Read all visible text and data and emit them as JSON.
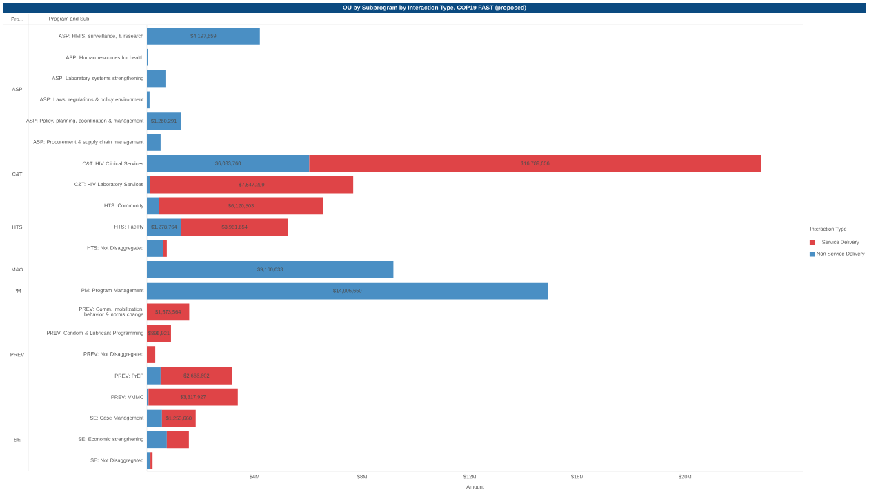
{
  "chart_data": {
    "type": "bar",
    "orientation": "horizontal",
    "stacked": true,
    "title": "OU by Subprogram by Interaction Type, COP19 FAST (proposed)",
    "xlabel": "Amount",
    "legend_title": "Interaction Type",
    "legend": "right",
    "categories": [
      "ASP: HMIS, surveillance, & research",
      "ASP: Human resources for health",
      "ASP: Laboratory systems strengthening",
      "ASP: Laws, regulations & policy environment",
      "ASP: Policy, planning, coordination & management",
      "ASP: Procurement & supply chain management",
      "C&T: HIV Clinical Services",
      "C&T: HIV Laboratory Services",
      "HTS: Community",
      "HTS: Facility",
      "HTS: Not Disaggregated",
      null,
      "PM: Program Management",
      "PREV: Comm. mobilization, behavior & norms change",
      "PREV: Condom & Lubricant Programming",
      "PREV: Not Disaggregated",
      "PREV: PrEP",
      "PREV: VMMC",
      "SE: Case Management",
      "SE: Economic strengthening",
      "SE: Not Disaggregated"
    ],
    "series": [
      {
        "name": "Non Service Delivery",
        "color": "#4a8fc4",
        "values": [
          4197659,
          50000,
          690000,
          100000,
          1260291,
          510000,
          6033760,
          120000,
          440000,
          1278764,
          590000,
          9160633,
          14905650,
          null,
          null,
          null,
          510000,
          60000,
          560000,
          740000,
          130000
        ],
        "value_labels": [
          "$4,197,659",
          null,
          null,
          null,
          "$1,260,291",
          null,
          "$6,033,760",
          null,
          null,
          "$1,278,764",
          null,
          "$9,160,633",
          "$14,905,650",
          null,
          null,
          null,
          null,
          null,
          null,
          null,
          null
        ]
      },
      {
        "name": "Service Delivery",
        "color": "#df4447",
        "values": [
          null,
          null,
          null,
          null,
          null,
          null,
          16789656,
          7547299,
          6120503,
          3961654,
          150000,
          null,
          null,
          1573564,
          895921,
          310000,
          2666602,
          3317927,
          1253660,
          820000,
          80000
        ],
        "value_labels": [
          null,
          null,
          null,
          null,
          null,
          null,
          "$16,789,656",
          "$7,547,299",
          "$6,120,503",
          "$3,961,654",
          null,
          null,
          null,
          "$1,573,564",
          "$895,921",
          null,
          "$2,666,602",
          "$3,317,927",
          "$1,253,660",
          null,
          null
        ]
      }
    ],
    "xlim": [
      0,
      24400000
    ],
    "xticks": [
      {
        "value": 4000000,
        "label": "$4M"
      },
      {
        "value": 8000000,
        "label": "$8M"
      },
      {
        "value": 12000000,
        "label": "$12M"
      },
      {
        "value": 16000000,
        "label": "$16M"
      },
      {
        "value": 20000000,
        "label": "$20M"
      }
    ],
    "annotations": [
      "Pro...",
      "Program and Sub",
      "ASP",
      "C&T",
      "HTS",
      "M&O",
      "PM",
      "PREV",
      "SE"
    ]
  }
}
